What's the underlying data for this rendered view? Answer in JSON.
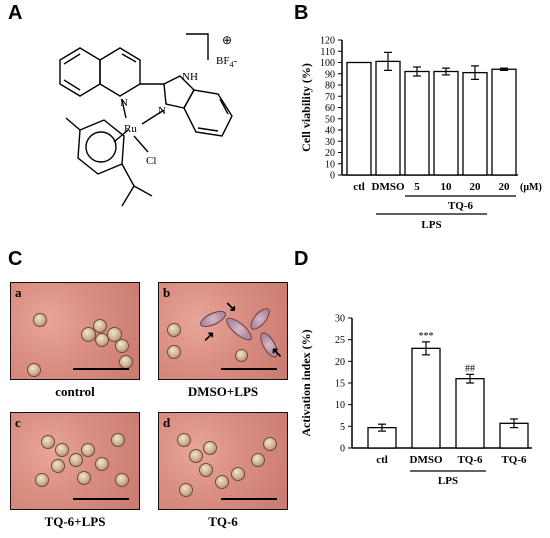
{
  "panels": {
    "a": "A",
    "b": "B",
    "c": "C",
    "d": "D"
  },
  "structure": {
    "labels": {
      "bf4": "BF",
      "bf4_sub": "4",
      "bf4_sign": "-",
      "charge": "⊕",
      "n1": "N",
      "nh": "NH",
      "n2": "N",
      "ru": "Ru",
      "cl": "Cl"
    }
  },
  "chart_data": [
    {
      "type": "bar",
      "panel": "B",
      "ylabel": "Cell viability (%)",
      "categories": [
        "ctl",
        "DMSO",
        "5",
        "10",
        "20",
        "20"
      ],
      "unit_label": "(μM)",
      "values": [
        100,
        101,
        92,
        92,
        91,
        94
      ],
      "errors": [
        0,
        8,
        4,
        3,
        6,
        1
      ],
      "ylim": [
        0,
        120
      ],
      "yticks": [
        0,
        10,
        20,
        30,
        40,
        50,
        60,
        70,
        80,
        90,
        100,
        110,
        120
      ],
      "group_labels": {
        "tq6": "TQ-6",
        "lps": "LPS"
      }
    },
    {
      "type": "bar",
      "panel": "D",
      "ylabel": "Activation index (%)",
      "categories": [
        "ctl",
        "DMSO",
        "TQ-6",
        "TQ-6"
      ],
      "values": [
        4.7,
        23.0,
        16.0,
        5.7
      ],
      "errors": [
        0.8,
        1.5,
        1.0,
        1.0
      ],
      "annotations": [
        "",
        "***",
        "##",
        ""
      ],
      "ylim": [
        0,
        30
      ],
      "yticks": [
        0,
        5,
        10,
        15,
        20,
        25,
        30
      ],
      "group_labels": {
        "lps": "LPS"
      }
    }
  ],
  "micrographs": [
    {
      "letter": "a",
      "caption": "control"
    },
    {
      "letter": "b",
      "caption": "DMSO+LPS"
    },
    {
      "letter": "c",
      "caption": "TQ-6+LPS"
    },
    {
      "letter": "d",
      "caption": "TQ-6"
    }
  ]
}
